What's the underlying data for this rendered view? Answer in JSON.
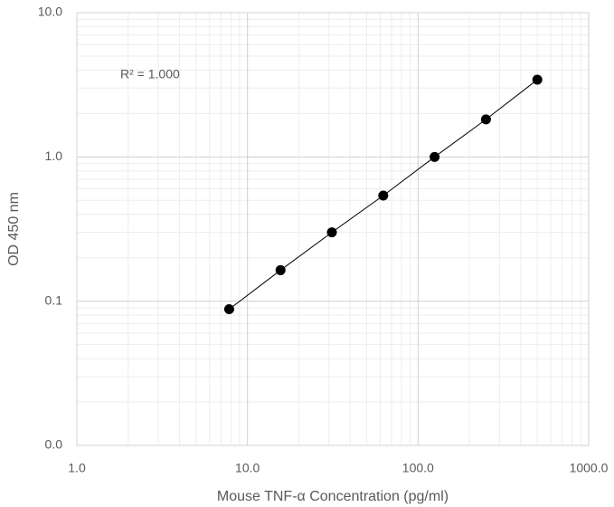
{
  "chart_data": {
    "type": "scatter",
    "x_label": "Mouse TNF-α Concentration (pg/ml)",
    "y_label": "OD 450 nm",
    "annotation": "R² = 1.000",
    "series": [
      {
        "color": "#000000",
        "x": [
          7.8125,
          15.625,
          31.25,
          62.5,
          125,
          250,
          500
        ],
        "values": [
          0.088,
          0.164,
          0.3,
          0.54,
          1.0,
          1.82,
          3.43
        ]
      }
    ],
    "xlim": [
      1,
      1000
    ],
    "ylim": [
      0.01,
      10
    ],
    "xticks": [
      {
        "value": 1,
        "label": "1.0"
      },
      {
        "value": 10,
        "label": "10.0"
      },
      {
        "value": 100,
        "label": "100.0"
      },
      {
        "value": 1000,
        "label": "1000.0"
      }
    ],
    "yticks": [
      {
        "value": 0.01,
        "label": "0.0"
      },
      {
        "value": 0.1,
        "label": "0.1"
      },
      {
        "value": 1,
        "label": "1.0"
      },
      {
        "value": 10,
        "label": "10.0"
      }
    ],
    "x_log": true,
    "y_log": true,
    "grid": true,
    "minor_grid": true,
    "trendline": true
  }
}
